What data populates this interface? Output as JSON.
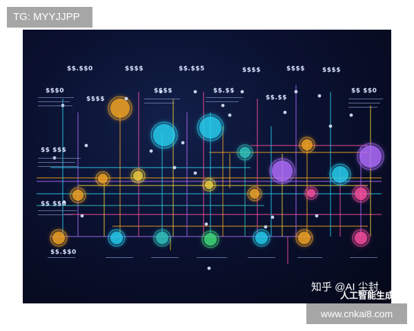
{
  "watermarks": {
    "tg_badge": "TG: MYYJJPP",
    "zhihu_credit": "知乎 @AI 尘封",
    "ai_generated": "人工智能生成",
    "site_url": "www.cnkai8.com"
  },
  "illustration": {
    "description_labels": [
      "$$.$$0",
      "$$$$",
      "$$.$$5",
      "$$$$",
      "$$$$",
      "$$$$",
      "$$$0",
      "$$$$",
      "$$$$",
      "$$.$$",
      "$$.$$",
      "$$ $$0",
      "$$ $$$",
      "$$ $$0",
      "$$.$$0"
    ],
    "colors": {
      "background": "#070c22",
      "orange": "#f5a623",
      "cyan": "#28d0f0",
      "purple": "#b06cff",
      "pink": "#ff4fa0",
      "green": "#3fe07a",
      "yellow": "#f3d33a",
      "teal": "#33c8c0"
    }
  }
}
